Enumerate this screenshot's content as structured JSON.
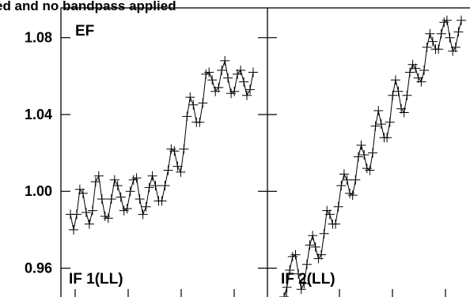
{
  "chart_data": {
    "type": "line",
    "title": "ed and no bandpass applied",
    "ylabel": "",
    "xlabel": "",
    "ylim": [
      0.945,
      1.0955
    ],
    "yticks": [
      0.96,
      1.0,
      1.04,
      1.08
    ],
    "ytick_labels": [
      "0.96",
      "1.00",
      "1.04",
      "1.08"
    ],
    "grid": false,
    "corner_label": "EF",
    "marker": "plus",
    "panels": [
      {
        "label": "IF 1(LL)",
        "points": [
          0.988,
          0.98,
          0.988,
          1.001,
          0.999,
          0.989,
          0.983,
          0.99,
          1.005,
          1.008,
          0.996,
          0.987,
          0.986,
          0.996,
          1.006,
          1.003,
          0.997,
          0.99,
          0.991,
          1.0,
          1.006,
          1.007,
          0.996,
          0.988,
          0.992,
          1.002,
          1.008,
          1.003,
          0.995,
          0.995,
          1.003,
          1.011,
          1.022,
          1.021,
          1.013,
          1.01,
          1.022,
          1.039,
          1.049,
          1.045,
          1.036,
          1.036,
          1.046,
          1.061,
          1.062,
          1.058,
          1.052,
          1.054,
          1.063,
          1.068,
          1.059,
          1.051,
          1.052,
          1.061,
          1.063,
          1.057,
          1.05,
          1.053,
          1.062
        ]
      },
      {
        "label": "IF 2(LL)",
        "points": [
          0.945,
          0.95,
          0.959,
          0.966,
          0.967,
          0.957,
          0.949,
          0.952,
          0.962,
          0.972,
          0.977,
          0.971,
          0.965,
          0.967,
          0.978,
          0.99,
          0.988,
          0.983,
          0.983,
          0.992,
          1.003,
          1.009,
          1.006,
          0.999,
          0.998,
          1.006,
          1.018,
          1.024,
          1.019,
          1.012,
          1.011,
          1.02,
          1.034,
          1.042,
          1.035,
          1.028,
          1.028,
          1.036,
          1.05,
          1.058,
          1.052,
          1.043,
          1.041,
          1.05,
          1.062,
          1.066,
          1.064,
          1.059,
          1.057,
          1.063,
          1.075,
          1.082,
          1.078,
          1.074,
          1.074,
          1.082,
          1.088,
          1.089,
          1.08,
          1.073,
          1.075,
          1.083,
          1.089
        ]
      }
    ]
  }
}
